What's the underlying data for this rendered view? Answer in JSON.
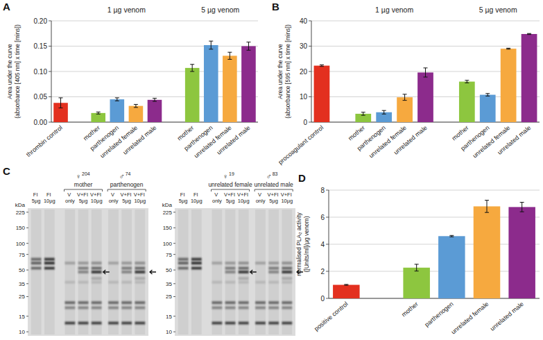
{
  "chart_data": [
    {
      "type": "bar",
      "title": "A",
      "y_label": [
        "Area under the curve",
        "(absorbance [405 nm] x time [mins])"
      ],
      "annotations": [
        "1 µg venom",
        "5 µg venom"
      ],
      "categories": [
        "thrombin control",
        null,
        "mother",
        "parthenogen",
        "unrelated female",
        "unrelated male",
        null,
        "mother",
        "parthenogen",
        "unrelated female",
        "unrelated male"
      ],
      "values": [
        0.038,
        null,
        0.018,
        0.045,
        0.032,
        0.044,
        null,
        0.107,
        0.152,
        0.131,
        0.15
      ],
      "errors": [
        0.01,
        null,
        0.002,
        0.003,
        0.003,
        0.003,
        null,
        0.007,
        0.008,
        0.007,
        0.008
      ],
      "colors": [
        "#e3301f",
        null,
        "#8dc63f",
        "#5b9bd5",
        "#f6a93f",
        "#8c2b8c",
        null,
        "#8dc63f",
        "#5b9bd5",
        "#f6a93f",
        "#8c2b8c"
      ],
      "ylim": [
        0,
        0.2
      ],
      "yticks": [
        {
          "value": 0,
          "label": "0.00"
        },
        {
          "value": 0.05,
          "label": "0.05"
        },
        {
          "value": 0.1,
          "label": "0.10"
        },
        {
          "value": 0.15,
          "label": "0.15"
        },
        {
          "value": 0.2,
          "label": "0.20"
        }
      ],
      "grid": true
    },
    {
      "type": "bar",
      "title": "B",
      "y_label": [
        "Area under the curve",
        "(absorbance [595 nm] x time [mins])"
      ],
      "annotations": [
        "1 µg venom",
        "5 µg venom"
      ],
      "categories": [
        "procoagulant control",
        null,
        "mother",
        "parthenogen",
        "unrelated female",
        "unrelated male",
        null,
        "mother",
        "parthenogen",
        "unrelated female",
        "unrelated male"
      ],
      "values": [
        22.3,
        null,
        3.3,
        3.9,
        9.8,
        19.6,
        null,
        16.0,
        10.8,
        29.0,
        34.8
      ],
      "errors": [
        0.3,
        null,
        0.6,
        0.7,
        1.2,
        1.8,
        null,
        0.5,
        0.5,
        0.2,
        0.2
      ],
      "colors": [
        "#e3301f",
        null,
        "#8dc63f",
        "#5b9bd5",
        "#f6a93f",
        "#8c2b8c",
        null,
        "#8dc63f",
        "#5b9bd5",
        "#f6a93f",
        "#8c2b8c"
      ],
      "ylim": [
        0,
        40
      ],
      "yticks": [
        0,
        10,
        20,
        30,
        40
      ],
      "grid": true
    },
    {
      "type": "bar",
      "title": "D",
      "y_label": [
        "normalised PLA₂ activity",
        "([Units/ml]/µg venom)"
      ],
      "categories": [
        "positive control",
        null,
        "mother",
        "parthenogen",
        "unrelated female",
        "unrelated male"
      ],
      "values": [
        1.0,
        null,
        2.27,
        4.6,
        6.8,
        6.75
      ],
      "errors": [
        0.03,
        null,
        0.25,
        0.05,
        0.45,
        0.35
      ],
      "colors": [
        "#e3301f",
        null,
        "#8dc63f",
        "#5b9bd5",
        "#f6a93f",
        "#8c2b8c"
      ],
      "ylim": [
        0,
        8
      ],
      "yticks": [
        0,
        2,
        4,
        6,
        8
      ],
      "grid": true
    }
  ],
  "gel_panel": {
    "title": "C",
    "y_label": "kDa",
    "log": true,
    "ylim": [
      9,
      250
    ],
    "yticks": [
      225,
      150,
      100,
      75,
      50,
      35,
      25,
      15,
      10
    ],
    "gels": [
      {
        "groups": [
          {
            "symbol": "♀",
            "number": 204,
            "label": "mother"
          },
          {
            "symbol": "♂",
            "number": 74,
            "label": "parthenogen"
          }
        ],
        "lanes": [
          "FI 5µg",
          "FI 10µg",
          "V only",
          "V+FI 5µg",
          "V+FI 10µg",
          "V only",
          "V+FI 5µg",
          "V+FI 10µg"
        ]
      },
      {
        "groups": [
          {
            "symbol": "♀",
            "number": 19,
            "label": "unrelated female"
          },
          {
            "symbol": "♂",
            "number": 83,
            "label": "unrelated male"
          }
        ],
        "lanes": [
          "FI 5µg",
          "FI 10µg",
          "V only",
          "V+FI 5µg",
          "V+FI 10µg",
          "V only",
          "V+FI 5µg",
          "V+FI 10µg"
        ]
      }
    ]
  }
}
